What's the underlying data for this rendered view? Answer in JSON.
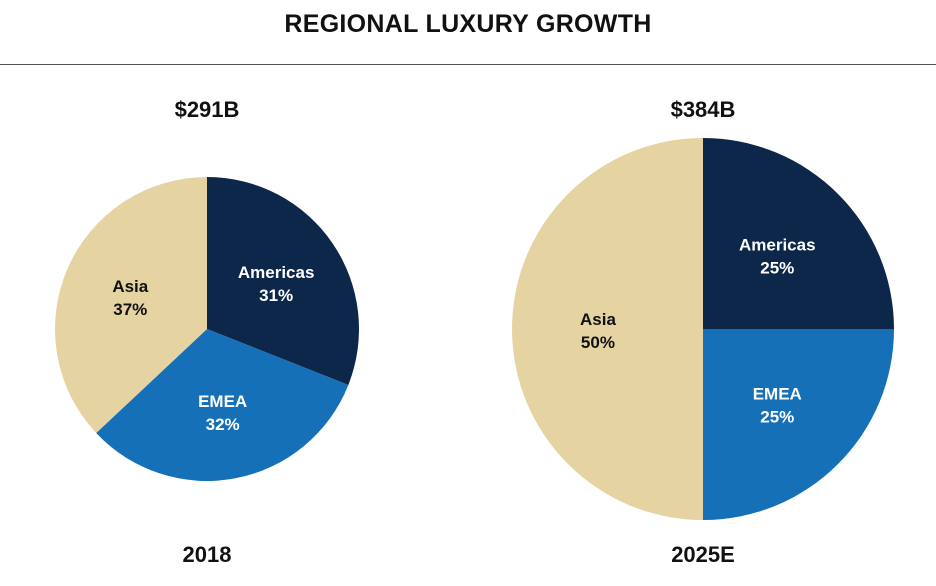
{
  "chart_data": [
    {
      "type": "pie",
      "title": "REGIONAL LUXURY GROWTH",
      "total_label": "$291B",
      "period_label": "2018",
      "slices": [
        {
          "name": "Americas",
          "value": 31,
          "label": "31%",
          "color": "#0c2749",
          "text_color": "#ffffff"
        },
        {
          "name": "EMEA",
          "value": 32,
          "label": "32%",
          "color": "#1570b8",
          "text_color": "#ffffff"
        },
        {
          "name": "Asia",
          "value": 37,
          "label": "37%",
          "color": "#e6d3a2",
          "text_color": "#111111"
        }
      ]
    },
    {
      "type": "pie",
      "title": "REGIONAL LUXURY GROWTH",
      "total_label": "$384B",
      "period_label": "2025E",
      "slices": [
        {
          "name": "Americas",
          "value": 25,
          "label": "25%",
          "color": "#0c2749",
          "text_color": "#ffffff"
        },
        {
          "name": "EMEA",
          "value": 25,
          "label": "25%",
          "color": "#1570b8",
          "text_color": "#ffffff"
        },
        {
          "name": "Asia",
          "value": 50,
          "label": "50%",
          "color": "#e6d3a2",
          "text_color": "#111111"
        }
      ]
    }
  ],
  "header": {
    "title": "REGIONAL LUXURY GROWTH"
  }
}
